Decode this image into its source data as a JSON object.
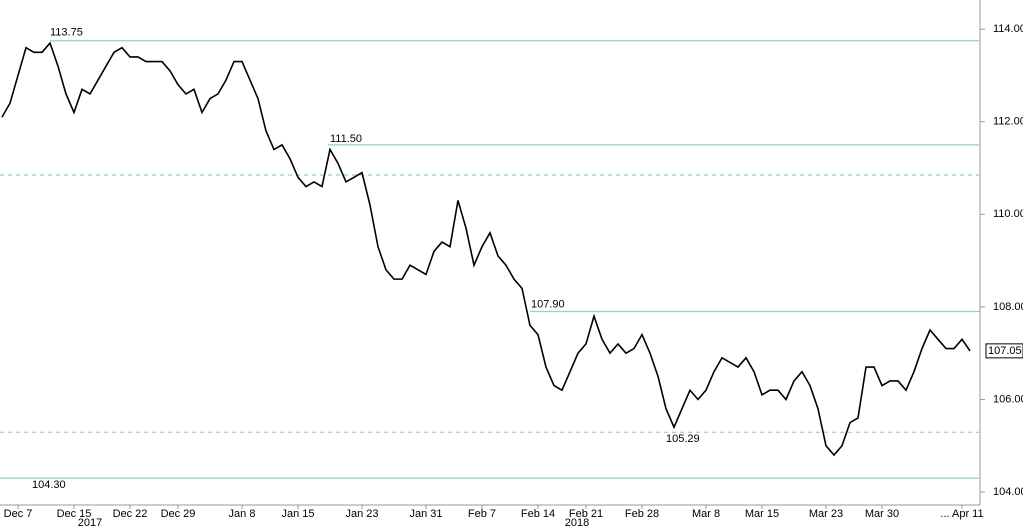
{
  "chart_data": {
    "type": "line",
    "color": "#000000",
    "categories": [
      null,
      null,
      "Dec 7",
      null,
      null,
      null,
      null,
      null,
      null,
      "Dec 15",
      null,
      null,
      null,
      null,
      null,
      null,
      "Dec 22",
      null,
      null,
      null,
      null,
      null,
      "Dec 29",
      null,
      null,
      null,
      null,
      null,
      null,
      null,
      "Jan 8",
      null,
      null,
      null,
      null,
      null,
      null,
      "Jan 15",
      null,
      null,
      null,
      null,
      null,
      null,
      null,
      "Jan 23",
      null,
      null,
      null,
      null,
      null,
      null,
      null,
      "Jan 31",
      null,
      null,
      null,
      null,
      null,
      null,
      "Feb 7",
      null,
      null,
      null,
      null,
      null,
      null,
      "Feb 14",
      null,
      null,
      null,
      null,
      null,
      "Feb 21",
      null,
      null,
      null,
      null,
      null,
      null,
      "Feb 28",
      null,
      null,
      null,
      null,
      null,
      null,
      null,
      "Mar 8",
      null,
      null,
      null,
      null,
      null,
      null,
      "Mar 15",
      null,
      null,
      null,
      null,
      null,
      null,
      null,
      "Mar 23",
      null,
      null,
      null,
      null,
      null,
      null,
      "Mar 30",
      null,
      null,
      null,
      null,
      null,
      null,
      null,
      null,
      null,
      "... Apr 11",
      null
    ],
    "values": [
      112.1,
      112.4,
      113.0,
      113.6,
      113.5,
      113.5,
      113.7,
      113.2,
      112.6,
      112.2,
      112.7,
      112.6,
      112.9,
      113.2,
      113.5,
      113.6,
      113.4,
      113.4,
      113.3,
      113.3,
      113.3,
      113.1,
      112.8,
      112.6,
      112.7,
      112.2,
      112.5,
      112.6,
      112.9,
      113.3,
      113.3,
      112.9,
      112.5,
      111.8,
      111.4,
      111.5,
      111.2,
      110.8,
      110.6,
      110.7,
      110.6,
      111.4,
      111.1,
      110.7,
      110.8,
      110.9,
      110.2,
      109.3,
      108.8,
      108.6,
      108.6,
      108.9,
      108.8,
      108.7,
      109.2,
      109.4,
      109.3,
      110.3,
      109.7,
      108.9,
      109.3,
      109.6,
      109.1,
      108.9,
      108.6,
      108.4,
      107.6,
      107.4,
      106.7,
      106.3,
      106.2,
      106.6,
      107.0,
      107.2,
      107.8,
      107.3,
      107.0,
      107.2,
      107.0,
      107.1,
      107.4,
      107.0,
      106.5,
      105.8,
      105.4,
      105.8,
      106.2,
      106.0,
      106.2,
      106.6,
      106.9,
      106.8,
      106.7,
      106.9,
      106.6,
      106.1,
      106.2,
      106.2,
      106.0,
      106.4,
      106.6,
      106.3,
      105.8,
      105.0,
      104.8,
      105.0,
      105.5,
      105.6,
      106.7,
      106.7,
      106.3,
      106.4,
      106.4,
      106.2,
      106.6,
      107.1,
      107.5,
      107.3,
      107.1,
      107.1,
      107.3,
      107.05
    ],
    "ylim": [
      103.72,
      114.63
    ],
    "yticks": [
      {
        "value": 104,
        "label": "104.00"
      },
      {
        "value": 106,
        "label": "106.00"
      },
      {
        "value": 108,
        "label": "108.00"
      },
      {
        "value": 110,
        "label": "110.00"
      },
      {
        "value": 112,
        "label": "112.00"
      },
      {
        "value": 114,
        "label": "114.00"
      }
    ],
    "year_labels": [
      "2017",
      "2018"
    ],
    "levels": [
      {
        "value": 113.75,
        "label": "113.75",
        "style": "solid"
      },
      {
        "value": 111.5,
        "label": "111.50",
        "style": "solid"
      },
      {
        "value": 110.85,
        "style": "dashed"
      },
      {
        "value": 107.9,
        "label": "107.90",
        "style": "solid"
      },
      {
        "value": 105.29,
        "label": "105.29",
        "style": "dashed"
      },
      {
        "value": 104.3,
        "label": "104.30",
        "style": "solid"
      }
    ],
    "level_color": "#8fd3c7"
  }
}
